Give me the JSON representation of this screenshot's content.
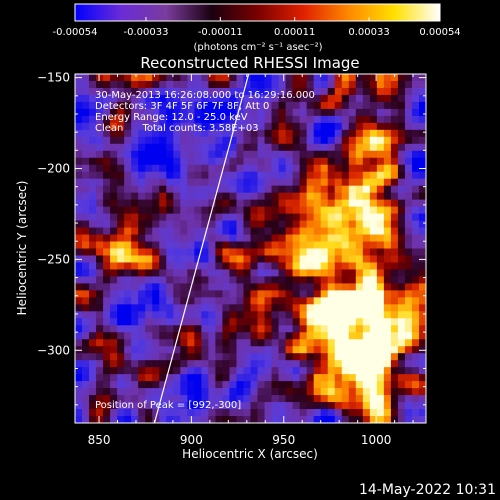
{
  "chart_data": {
    "type": "heatmap",
    "title": "Reconstructed RHESSI Image",
    "xlabel": "Heliocentric X (arcsec)",
    "ylabel": "Heliocentric Y (arcsec)",
    "xlim": [
      837,
      1027
    ],
    "ylim": [
      -340,
      -148
    ],
    "x_ticks": [
      "850",
      "900",
      "950",
      "1000"
    ],
    "x_tick_values": [
      850,
      900,
      950,
      1000
    ],
    "y_ticks": [
      "-150",
      "-200",
      "-250",
      "-300"
    ],
    "y_tick_values": [
      -150,
      -200,
      -250,
      -300
    ],
    "colorbar": {
      "ticks": [
        "-0.00054",
        "-0.00033",
        "-0.00011",
        "0.00011",
        "0.00033",
        "0.00054"
      ],
      "tick_values": [
        -0.00054,
        -0.00033,
        -0.00011,
        0.00011,
        0.00033,
        0.00054
      ],
      "range": [
        -0.00054,
        0.00054
      ],
      "units": "(photons cm⁻² s⁻¹ asec⁻²)",
      "colors": [
        "#0000ff",
        "#6a2bd8",
        "#7a3c9c",
        "#1a0010",
        "#7a0000",
        "#e02000",
        "#ff8800",
        "#ffe000",
        "#ffffff"
      ]
    },
    "annotations": {
      "line1": "30-May-2013 16:26:08.000 to 16:29:16.000",
      "line2": "Detectors: 3F 4F 5F 6F 7F 8F, Att 0",
      "line3": "Energy Range: 12.0 - 25.0 keV",
      "line4": "Clean      Total counts: 3.58E+03",
      "peak": "Position of Peak = [992,-300]"
    },
    "peak_position": [
      992,
      -300
    ],
    "limb_line": [
      [
        880,
        -340
      ],
      [
        931,
        -148
      ]
    ],
    "grid": false
  },
  "footer": {
    "timestamp": "14-May-2022 10:31"
  }
}
